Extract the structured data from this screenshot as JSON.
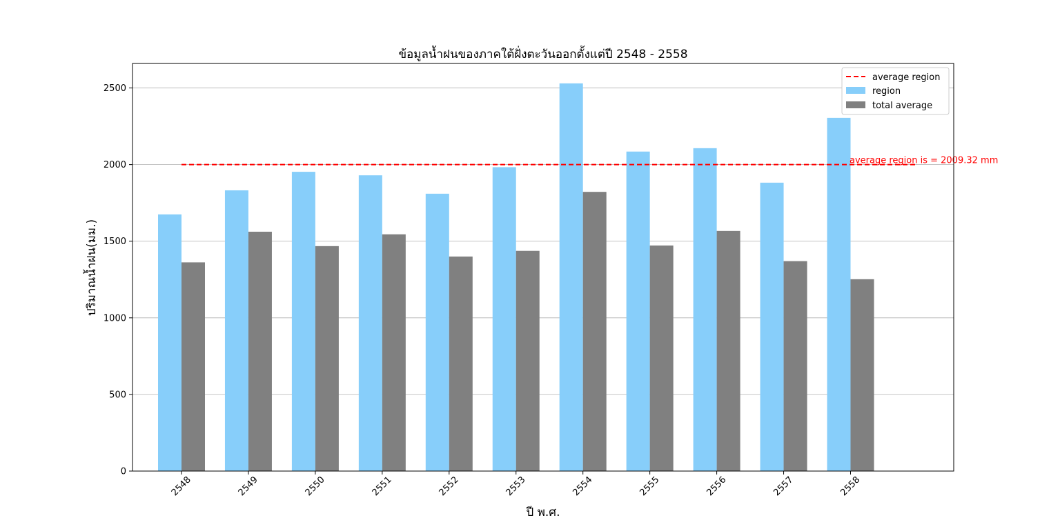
{
  "chart_data": {
    "type": "bar",
    "title": "ข้อมูลน้ำฝนของภาคใต้ฝั่งตะวันออกตั้งแต่ปี 2548 - 2558",
    "xlabel": "ปี พ.ศ.",
    "ylabel": "ปริมาณน้ำฝน(มม.)",
    "categories": [
      "2548",
      "2549",
      "2550",
      "2551",
      "2552",
      "2553",
      "2554",
      "2555",
      "2556",
      "2557",
      "2558"
    ],
    "series": [
      {
        "name": "region",
        "color": "#87cefa",
        "values": [
          1675,
          1832,
          1953,
          1930,
          1810,
          1983,
          2530,
          2085,
          2107,
          1882,
          2305
        ]
      },
      {
        "name": "total average",
        "color": "#808080",
        "values": [
          1362,
          1562,
          1468,
          1545,
          1400,
          1437,
          1822,
          1472,
          1567,
          1370,
          1252
        ]
      }
    ],
    "reference_line": {
      "name": "average region",
      "value": 2009.32,
      "color": "#ff0000",
      "style": "dashed",
      "annotation": "average region is = 2009.32 mm"
    },
    "yticks": [
      0,
      500,
      1000,
      1500,
      2000,
      2500
    ],
    "ylim": [
      0,
      2660
    ],
    "grid": "horizontal",
    "legend_position": "top-right",
    "legend_entries": [
      "average region",
      "region",
      "total average"
    ]
  }
}
